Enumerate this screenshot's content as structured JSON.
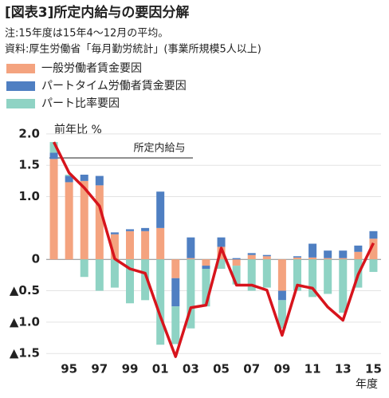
{
  "chart_data": {
    "type": "bar_line",
    "title": "[図表3]所定内給与の要因分解",
    "subtitle": "注:15年度は15年4～12月の平均。",
    "source": "資料:厚生労働省「毎月勤労統計」(事業所規模5人以上)",
    "y_axis_label": "前年比 %",
    "x_axis_label": "年度",
    "annotation": "所定内給与",
    "categories": [
      null,
      "95",
      null,
      "97",
      null,
      "99",
      null,
      "01",
      null,
      "03",
      null,
      "05",
      null,
      "07",
      null,
      "09",
      null,
      "11",
      null,
      "13",
      null,
      "15"
    ],
    "series": [
      {
        "name": "一般労働者賃金要因",
        "color": "#f4a37f",
        "kind": "bar",
        "values": [
          1.6,
          1.23,
          1.25,
          1.18,
          0.4,
          0.45,
          0.45,
          0.5,
          -0.3,
          0.02,
          -0.1,
          0.2,
          -0.1,
          0.07,
          0.05,
          -0.5,
          0.03,
          0.03,
          0.02,
          0.02,
          0.12,
          0.33
        ]
      },
      {
        "name": "パートタイム労働者賃金要因",
        "color": "#4f7fc2",
        "kind": "bar",
        "values": [
          0.1,
          0.1,
          0.1,
          0.15,
          0.03,
          0.03,
          0.05,
          0.58,
          -0.45,
          0.33,
          -0.05,
          0.15,
          0.02,
          0.03,
          0.02,
          -0.15,
          0.02,
          0.22,
          0.12,
          0.12,
          0.1,
          0.12
        ]
      },
      {
        "name": "パート比率要因",
        "color": "#8fd3c4",
        "kind": "bar",
        "values": [
          0.17,
          0.02,
          -0.28,
          -0.5,
          -0.45,
          -0.7,
          -0.65,
          -1.36,
          -0.6,
          -1.1,
          -0.6,
          -0.15,
          -0.3,
          -0.5,
          -0.45,
          -0.45,
          -0.5,
          -0.6,
          -0.55,
          -0.85,
          -0.45,
          -0.2
        ]
      },
      {
        "name": "所定内給与",
        "color": "#d7141c",
        "kind": "line",
        "values": [
          1.87,
          1.38,
          1.14,
          0.85,
          0.01,
          -0.15,
          -0.22,
          -0.91,
          -1.55,
          -0.77,
          -0.73,
          0.18,
          -0.41,
          -0.41,
          -0.49,
          -1.21,
          -0.41,
          -0.46,
          -0.76,
          -0.97,
          -0.24,
          0.26
        ]
      }
    ],
    "ylim": [
      -1.65,
      2.1
    ],
    "yticks": [
      {
        "value": -1.5,
        "label": "▲1.5"
      },
      {
        "value": -1.0,
        "label": "▲1.0"
      },
      {
        "value": -0.5,
        "label": "▲0.5"
      },
      0,
      {
        "value": 1.0,
        "label": "1.0"
      },
      1.5,
      {
        "value": 2.0,
        "label": "2.0"
      }
    ],
    "grid": true
  }
}
